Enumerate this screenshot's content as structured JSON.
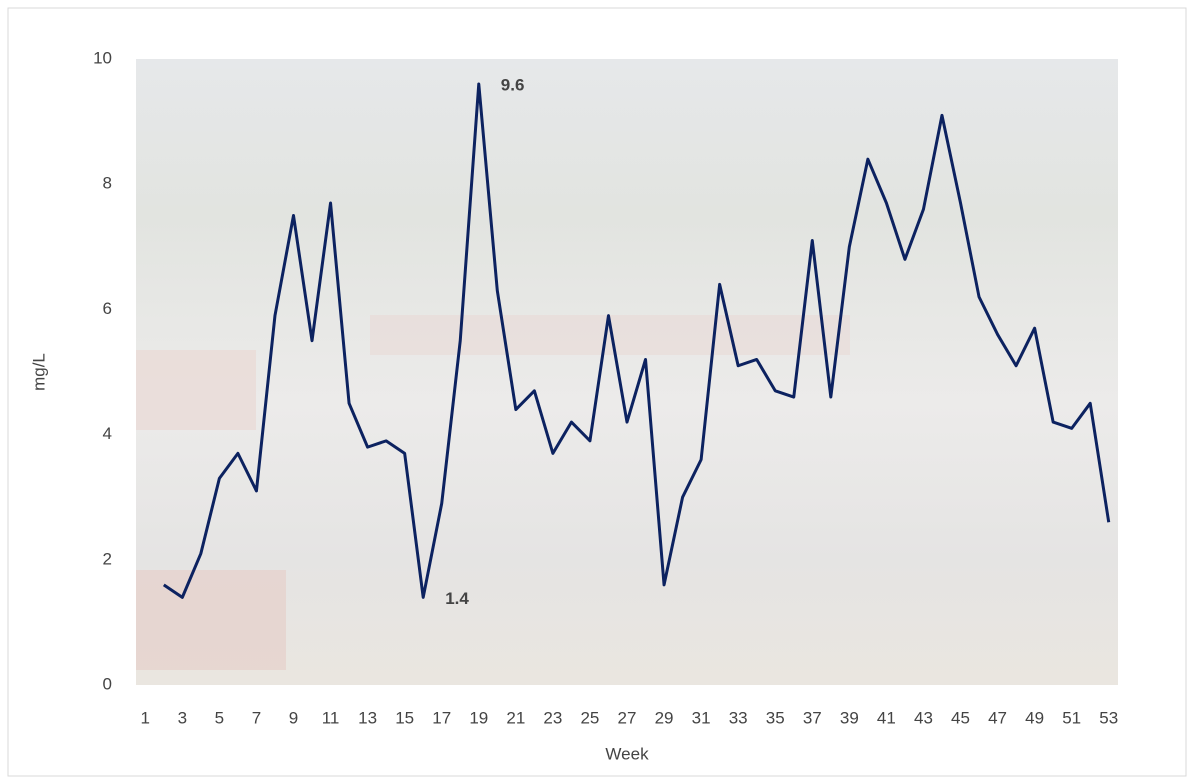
{
  "chart_data": {
    "type": "line",
    "x_label": "Week",
    "y_label": "mg/L",
    "x": [
      1,
      2,
      3,
      4,
      5,
      6,
      7,
      8,
      9,
      10,
      11,
      12,
      13,
      14,
      15,
      16,
      17,
      18,
      19,
      20,
      21,
      22,
      23,
      24,
      25,
      26,
      27,
      28,
      29,
      30,
      31,
      32,
      33,
      34,
      35,
      36,
      37,
      38,
      39,
      40,
      41,
      42,
      43,
      44,
      45,
      46,
      47,
      48,
      49,
      50,
      51,
      52,
      53
    ],
    "series": [
      {
        "name": "mg/L",
        "color": "#0c2260",
        "values": [
          null,
          1.6,
          1.4,
          2.1,
          3.3,
          3.7,
          3.1,
          5.9,
          7.5,
          5.5,
          7.7,
          4.5,
          3.8,
          3.9,
          3.7,
          1.4,
          2.9,
          5.5,
          9.6,
          6.3,
          4.4,
          4.7,
          3.7,
          4.2,
          3.9,
          5.9,
          4.2,
          5.2,
          1.6,
          3.0,
          3.6,
          6.4,
          5.1,
          5.2,
          4.7,
          4.6,
          7.1,
          4.6,
          7.0,
          8.4,
          7.7,
          6.8,
          7.6,
          9.1,
          7.7,
          6.2,
          5.6,
          5.1,
          5.7,
          4.2,
          4.1,
          4.5,
          2.6
        ]
      }
    ],
    "data_labels_at": [
      16,
      19
    ],
    "xlim": [
      0.5,
      53.5
    ],
    "xticks": [
      1,
      3,
      5,
      7,
      9,
      11,
      13,
      15,
      17,
      19,
      21,
      23,
      25,
      27,
      29,
      31,
      33,
      35,
      37,
      39,
      41,
      43,
      45,
      47,
      49,
      51,
      53
    ],
    "ylim": [
      0,
      10
    ],
    "yticks": [
      0,
      2,
      4,
      6,
      8,
      10
    ],
    "grid": false
  }
}
